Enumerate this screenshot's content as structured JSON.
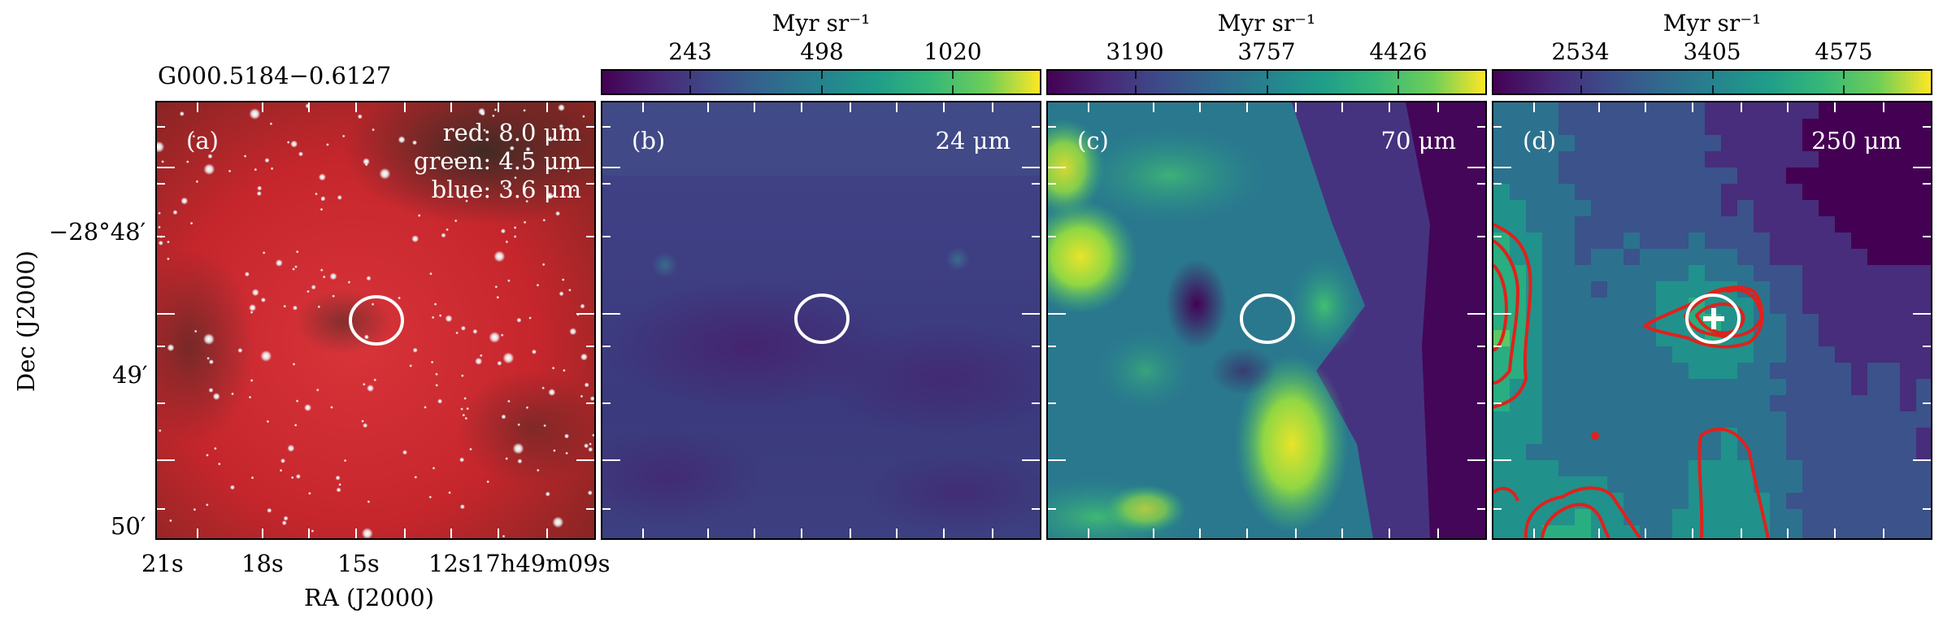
{
  "source_name": "G000.5184−0.6127",
  "axes": {
    "ylabel": "Dec (J2000)",
    "xlabel": "RA (J2000)",
    "dec_ticks": [
      "−28°48′",
      "49′",
      "50′"
    ],
    "ra_ticks": [
      "21s",
      "18s",
      "15s",
      "12s17h49m09s"
    ]
  },
  "colorbar_unit": "Myr sr⁻¹",
  "panels": [
    {
      "id": "a",
      "label": "(a)",
      "lines": [
        "red: 8.0 μm",
        "green: 4.5 μm",
        "blue: 3.6 μm"
      ]
    },
    {
      "id": "b",
      "label": "(b)",
      "band": "24 μm",
      "colorbar": [
        "243",
        "498",
        "1020"
      ]
    },
    {
      "id": "c",
      "label": "(c)",
      "band": "70 μm",
      "colorbar": [
        "3190",
        "3757",
        "4426"
      ]
    },
    {
      "id": "d",
      "label": "(d)",
      "band": "250 μm",
      "colorbar": [
        "2534",
        "3405",
        "4575"
      ]
    }
  ],
  "colors": {
    "viridis_low": "#440154",
    "viridis_mid": "#21918c",
    "viridis_high": "#fde725",
    "contour": "#e0211c",
    "aperture": "#ffffff"
  }
}
